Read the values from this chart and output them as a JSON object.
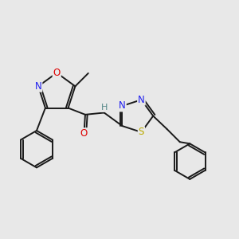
{
  "bg_color": "#e8e8e8",
  "bond_color": "#1a1a1a",
  "N_color": "#2020ee",
  "O_color": "#dd0000",
  "S_color": "#bbaa00",
  "H_color": "#558888",
  "C_color": "#1a1a1a",
  "font_size": 8.5,
  "lw": 1.4,
  "fig_w": 3.0,
  "fig_h": 3.0,
  "dpi": 100,
  "xlim": [
    0,
    10
  ],
  "ylim": [
    0,
    10
  ]
}
